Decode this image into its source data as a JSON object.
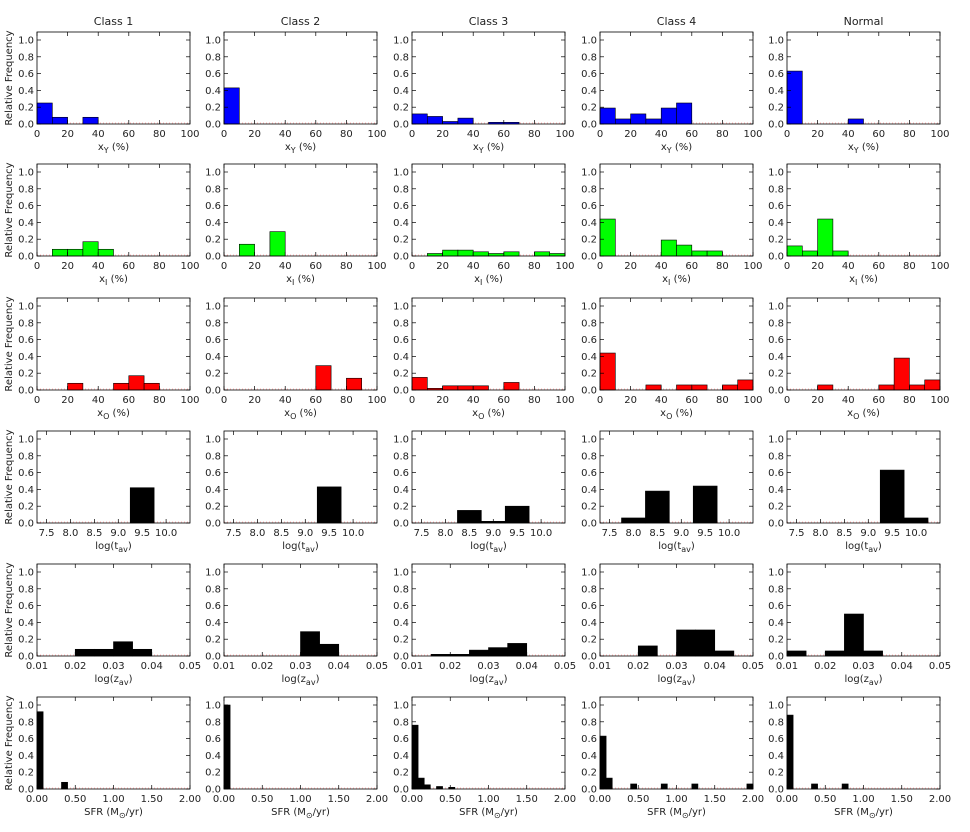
{
  "figure": {
    "ylabel": "Relative Frequency",
    "column_titles": [
      "Class 1",
      "Class 2",
      "Class 3",
      "Class 4",
      "Normal"
    ]
  },
  "chart_data": [
    {
      "type": "bar",
      "row": "x_Y",
      "xlabel": "x_Y (%)",
      "color": "#0000ff",
      "xlim": [
        0,
        100
      ],
      "ylim": [
        0,
        1
      ],
      "xticks": [
        "0",
        "20",
        "40",
        "60",
        "80",
        "100"
      ],
      "yticks": [
        "0.0",
        "0.2",
        "0.4",
        "0.6",
        "0.8",
        "1.0"
      ],
      "bin_width": 10,
      "series": [
        {
          "column": "Class 1",
          "x": [
            0,
            10,
            20,
            30,
            40
          ],
          "values": [
            0.25,
            0.08,
            0,
            0.08,
            0
          ]
        },
        {
          "column": "Class 2",
          "x": [
            0
          ],
          "values": [
            0.43
          ]
        },
        {
          "column": "Class 3",
          "x": [
            0,
            10,
            20,
            30,
            40,
            50,
            60
          ],
          "values": [
            0.12,
            0.09,
            0.03,
            0.07,
            0,
            0.02,
            0.02
          ]
        },
        {
          "column": "Class 4",
          "x": [
            0,
            10,
            20,
            30,
            40,
            50
          ],
          "values": [
            0.19,
            0.06,
            0.12,
            0.06,
            0.19,
            0.25
          ]
        },
        {
          "column": "Normal",
          "x": [
            0,
            10,
            20,
            30,
            40
          ],
          "values": [
            0.63,
            0,
            0,
            0,
            0.06
          ]
        }
      ]
    },
    {
      "type": "bar",
      "row": "x_I",
      "xlabel": "x_I (%)",
      "color": "#00ff00",
      "xlim": [
        0,
        100
      ],
      "ylim": [
        0,
        1
      ],
      "xticks": [
        "0",
        "20",
        "40",
        "60",
        "80",
        "100"
      ],
      "yticks": [
        "0.0",
        "0.2",
        "0.4",
        "0.6",
        "0.8",
        "1.0"
      ],
      "bin_width": 10,
      "series": [
        {
          "column": "Class 1",
          "x": [
            10,
            20,
            30,
            40
          ],
          "values": [
            0.08,
            0.08,
            0.17,
            0.08
          ]
        },
        {
          "column": "Class 2",
          "x": [
            10,
            20,
            30
          ],
          "values": [
            0.14,
            0,
            0.29
          ]
        },
        {
          "column": "Class 3",
          "x": [
            0,
            10,
            20,
            30,
            40,
            50,
            60,
            70,
            80,
            90
          ],
          "values": [
            0,
            0.03,
            0.07,
            0.07,
            0.05,
            0.03,
            0.05,
            0,
            0.05,
            0.03
          ]
        },
        {
          "column": "Class 4",
          "x": [
            0,
            10,
            20,
            30,
            40,
            50,
            60,
            70
          ],
          "values": [
            0.44,
            0,
            0,
            0,
            0.19,
            0.13,
            0.06,
            0.06
          ]
        },
        {
          "column": "Normal",
          "x": [
            0,
            10,
            20,
            30
          ],
          "values": [
            0.12,
            0.06,
            0.44,
            0.06
          ]
        }
      ]
    },
    {
      "type": "bar",
      "row": "x_O",
      "xlabel": "x_O (%)",
      "color": "#ff0000",
      "xlim": [
        0,
        100
      ],
      "ylim": [
        0,
        1
      ],
      "xticks": [
        "0",
        "20",
        "40",
        "60",
        "80",
        "100"
      ],
      "yticks": [
        "0.0",
        "0.2",
        "0.4",
        "0.6",
        "0.8",
        "1.0"
      ],
      "bin_width": 10,
      "series": [
        {
          "column": "Class 1",
          "x": [
            20,
            30,
            40,
            50,
            60,
            70
          ],
          "values": [
            0.08,
            0,
            0,
            0.08,
            0.17,
            0.08
          ]
        },
        {
          "column": "Class 2",
          "x": [
            60,
            70,
            80
          ],
          "values": [
            0.29,
            0,
            0.14
          ]
        },
        {
          "column": "Class 3",
          "x": [
            0,
            10,
            20,
            30,
            40,
            50,
            60
          ],
          "values": [
            0.15,
            0.02,
            0.05,
            0.05,
            0.05,
            0,
            0.09
          ]
        },
        {
          "column": "Class 4",
          "x": [
            0,
            10,
            20,
            30,
            40,
            50,
            60,
            70,
            80,
            90
          ],
          "values": [
            0.44,
            0,
            0,
            0.06,
            0,
            0.06,
            0.06,
            0,
            0.06,
            0.12
          ]
        },
        {
          "column": "Normal",
          "x": [
            20,
            30,
            40,
            50,
            60,
            70,
            80,
            90
          ],
          "values": [
            0.06,
            0,
            0,
            0,
            0.06,
            0.38,
            0.06,
            0.12
          ]
        }
      ]
    },
    {
      "type": "bar",
      "row": "log_t",
      "xlabel": "log(t_av)",
      "color": "#000000",
      "xlim": [
        7.3,
        10.5
      ],
      "ylim": [
        0,
        1
      ],
      "xticks": [
        "7.5",
        "8.0",
        "8.5",
        "9.0",
        "9.5",
        "10.0"
      ],
      "yticks": [
        "0.0",
        "0.2",
        "0.4",
        "0.6",
        "0.8",
        "1.0"
      ],
      "bin_width": 0.5,
      "series": [
        {
          "column": "Class 1",
          "x": [
            9.25
          ],
          "values": [
            0.42
          ]
        },
        {
          "column": "Class 2",
          "x": [
            9.25
          ],
          "values": [
            0.43
          ]
        },
        {
          "column": "Class 3",
          "x": [
            8.25,
            8.75,
            9.25
          ],
          "values": [
            0.15,
            0.02,
            0.2
          ]
        },
        {
          "column": "Class 4",
          "x": [
            7.75,
            8.25,
            8.75,
            9.25
          ],
          "values": [
            0.06,
            0.38,
            0,
            0.44
          ]
        },
        {
          "column": "Normal",
          "x": [
            9.25,
            9.75
          ],
          "values": [
            0.63,
            0.06
          ]
        }
      ]
    },
    {
      "type": "bar",
      "row": "log_z",
      "xlabel": "log(z_av)",
      "color": "#000000",
      "xlim": [
        0.01,
        0.05
      ],
      "ylim": [
        0,
        1
      ],
      "xticks": [
        "0.01",
        "0.02",
        "0.03",
        "0.04",
        "0.05"
      ],
      "yticks": [
        "0.0",
        "0.2",
        "0.4",
        "0.6",
        "0.8",
        "1.0"
      ],
      "bin_width": 0.005,
      "series": [
        {
          "column": "Class 1",
          "x": [
            0.02,
            0.025,
            0.03,
            0.035
          ],
          "values": [
            0.08,
            0.08,
            0.17,
            0.08
          ]
        },
        {
          "column": "Class 2",
          "x": [
            0.03,
            0.035
          ],
          "values": [
            0.29,
            0.14
          ]
        },
        {
          "column": "Class 3",
          "x": [
            0.015,
            0.02,
            0.025,
            0.03,
            0.035
          ],
          "values": [
            0.02,
            0.02,
            0.07,
            0.1,
            0.15
          ]
        },
        {
          "column": "Class 4",
          "x": [
            0.02,
            0.025,
            0.03,
            0.035,
            0.04
          ],
          "values": [
            0.12,
            0,
            0.31,
            0.31,
            0.06
          ]
        },
        {
          "column": "Normal",
          "x": [
            0.01,
            0.015,
            0.02,
            0.025,
            0.03
          ],
          "values": [
            0.06,
            0,
            0.06,
            0.5,
            0.06
          ]
        }
      ]
    },
    {
      "type": "bar",
      "row": "sfr",
      "xlabel": "SFR (M⊙/yr)",
      "color": "#000000",
      "xlim": [
        0,
        2
      ],
      "ylim": [
        0,
        1
      ],
      "xticks": [
        "0.00",
        "0.50",
        "1.00",
        "1.50",
        "2.00"
      ],
      "yticks": [
        "0.0",
        "0.2",
        "0.4",
        "0.6",
        "0.8",
        "1.0"
      ],
      "bin_width": 0.08,
      "series": [
        {
          "column": "Class 1",
          "x": [
            0,
            0.32
          ],
          "values": [
            0.92,
            0.08
          ]
        },
        {
          "column": "Class 2",
          "x": [
            0
          ],
          "values": [
            1.0
          ]
        },
        {
          "column": "Class 3",
          "x": [
            0,
            0.08,
            0.16,
            0.24,
            0.32,
            0.48
          ],
          "values": [
            0.76,
            0.13,
            0.05,
            0,
            0.03,
            0.02
          ]
        },
        {
          "column": "Class 4",
          "x": [
            0,
            0.08,
            0.4,
            0.8,
            1.2,
            1.92
          ],
          "values": [
            0.63,
            0.13,
            0.06,
            0.06,
            0.06,
            0.06
          ]
        },
        {
          "column": "Normal",
          "x": [
            0,
            0.32,
            0.72
          ],
          "values": [
            0.88,
            0.06,
            0.06
          ]
        }
      ]
    }
  ]
}
